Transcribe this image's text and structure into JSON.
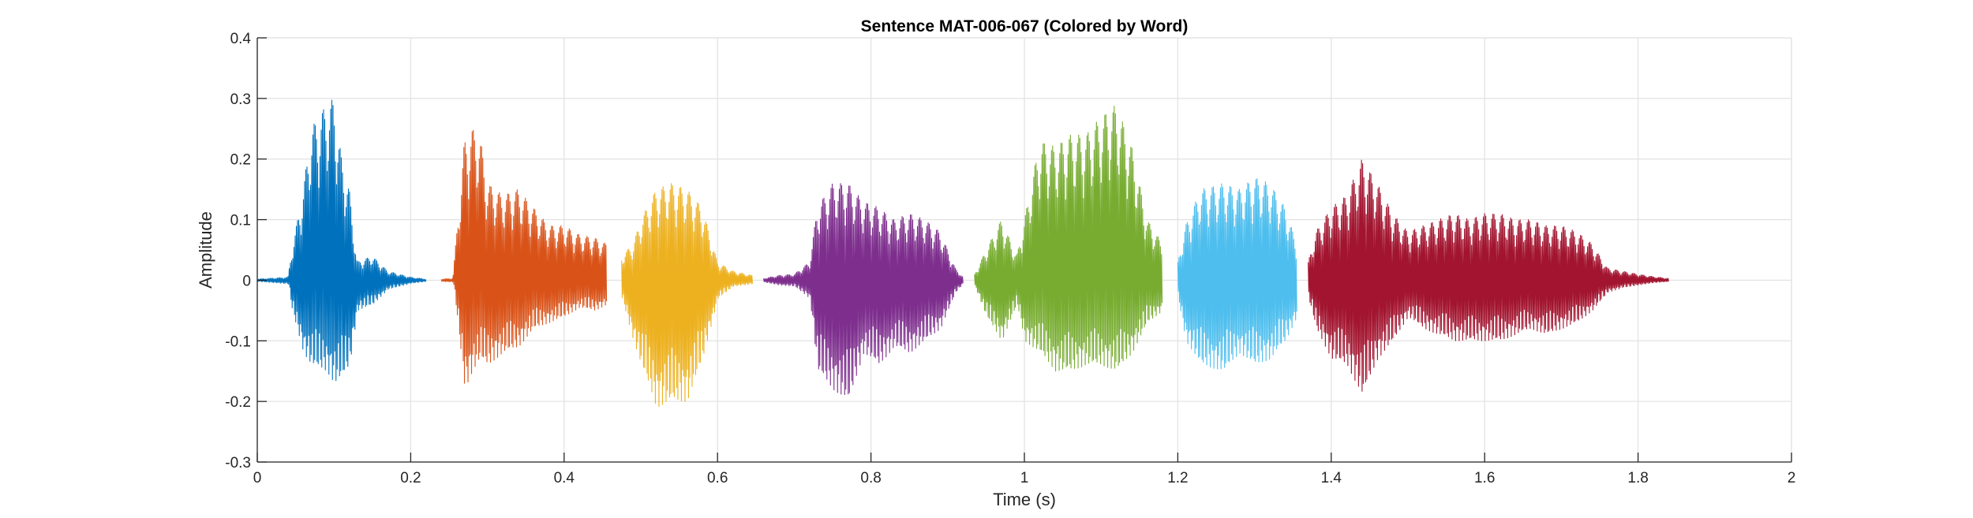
{
  "chart_data": {
    "type": "line",
    "title": "Sentence MAT-006-067 (Colored by Word)",
    "xlabel": "Time (s)",
    "ylabel": "Amplitude",
    "xlim": [
      0,
      2
    ],
    "ylim": [
      -0.3,
      0.4
    ],
    "xticks": [
      0,
      0.2,
      0.4,
      0.6,
      0.8,
      1,
      1.2,
      1.4,
      1.6,
      1.8,
      2
    ],
    "xtick_labels": [
      "0",
      "0.2",
      "0.4",
      "0.6",
      "0.8",
      "1",
      "1.2",
      "1.4",
      "1.6",
      "1.8",
      "2"
    ],
    "yticks": [
      -0.3,
      -0.2,
      -0.1,
      0,
      0.1,
      0.2,
      0.3,
      0.4
    ],
    "ytick_labels": [
      "-0.3",
      "-0.2",
      "-0.1",
      "0",
      "0.1",
      "0.2",
      "0.3",
      "0.4"
    ],
    "grid": true,
    "series": [
      {
        "color": "#0072BD",
        "t_start": 0.0,
        "t_end": 0.22,
        "envelope": [
          [
            0.0,
            0.002,
            -0.002
          ],
          [
            0.04,
            0.005,
            -0.006
          ],
          [
            0.045,
            0.05,
            -0.05
          ],
          [
            0.06,
            0.15,
            -0.12
          ],
          [
            0.07,
            0.25,
            -0.14
          ],
          [
            0.09,
            0.29,
            -0.15
          ],
          [
            0.1,
            0.3,
            -0.17
          ],
          [
            0.11,
            0.2,
            -0.16
          ],
          [
            0.12,
            0.15,
            -0.14
          ],
          [
            0.13,
            0.03,
            -0.05
          ],
          [
            0.15,
            0.04,
            -0.04
          ],
          [
            0.17,
            0.015,
            -0.015
          ],
          [
            0.2,
            0.005,
            -0.005
          ],
          [
            0.22,
            0.002,
            -0.002
          ]
        ]
      },
      {
        "color": "#D95319",
        "t_start": 0.24,
        "t_end": 0.455,
        "envelope": [
          [
            0.24,
            0.002,
            -0.002
          ],
          [
            0.255,
            0.003,
            -0.003
          ],
          [
            0.26,
            0.08,
            -0.06
          ],
          [
            0.27,
            0.23,
            -0.18
          ],
          [
            0.28,
            0.25,
            -0.15
          ],
          [
            0.29,
            0.24,
            -0.13
          ],
          [
            0.3,
            0.16,
            -0.14
          ],
          [
            0.32,
            0.14,
            -0.12
          ],
          [
            0.34,
            0.15,
            -0.11
          ],
          [
            0.36,
            0.12,
            -0.08
          ],
          [
            0.38,
            0.09,
            -0.07
          ],
          [
            0.4,
            0.09,
            -0.06
          ],
          [
            0.42,
            0.075,
            -0.045
          ],
          [
            0.44,
            0.07,
            -0.05
          ],
          [
            0.455,
            0.06,
            -0.04
          ]
        ]
      },
      {
        "color": "#EDB120",
        "t_start": 0.475,
        "t_end": 0.645,
        "envelope": [
          [
            0.475,
            0.04,
            -0.03
          ],
          [
            0.49,
            0.06,
            -0.1
          ],
          [
            0.5,
            0.1,
            -0.14
          ],
          [
            0.52,
            0.15,
            -0.21
          ],
          [
            0.54,
            0.16,
            -0.2
          ],
          [
            0.56,
            0.15,
            -0.2
          ],
          [
            0.58,
            0.12,
            -0.13
          ],
          [
            0.6,
            0.03,
            -0.03
          ],
          [
            0.62,
            0.015,
            -0.01
          ],
          [
            0.645,
            0.008,
            -0.006
          ]
        ]
      },
      {
        "color": "#7E2F8E",
        "t_start": 0.66,
        "t_end": 0.92,
        "envelope": [
          [
            0.66,
            0.003,
            -0.003
          ],
          [
            0.68,
            0.008,
            -0.008
          ],
          [
            0.7,
            0.01,
            -0.01
          ],
          [
            0.72,
            0.03,
            -0.03
          ],
          [
            0.73,
            0.12,
            -0.15
          ],
          [
            0.75,
            0.16,
            -0.18
          ],
          [
            0.77,
            0.16,
            -0.2
          ],
          [
            0.79,
            0.13,
            -0.12
          ],
          [
            0.81,
            0.12,
            -0.14
          ],
          [
            0.83,
            0.1,
            -0.11
          ],
          [
            0.85,
            0.11,
            -0.12
          ],
          [
            0.87,
            0.1,
            -0.1
          ],
          [
            0.89,
            0.08,
            -0.08
          ],
          [
            0.91,
            0.02,
            -0.02
          ],
          [
            0.92,
            0.005,
            -0.005
          ]
        ]
      },
      {
        "color": "#77AC30",
        "t_start": 0.935,
        "t_end": 1.18,
        "envelope": [
          [
            0.935,
            0.01,
            -0.01
          ],
          [
            0.95,
            0.05,
            -0.06
          ],
          [
            0.97,
            0.1,
            -0.1
          ],
          [
            0.99,
            0.04,
            -0.04
          ],
          [
            1.0,
            0.1,
            -0.1
          ],
          [
            1.02,
            0.23,
            -0.12
          ],
          [
            1.04,
            0.22,
            -0.15
          ],
          [
            1.06,
            0.24,
            -0.15
          ],
          [
            1.08,
            0.24,
            -0.14
          ],
          [
            1.1,
            0.27,
            -0.14
          ],
          [
            1.12,
            0.29,
            -0.15
          ],
          [
            1.14,
            0.22,
            -0.12
          ],
          [
            1.16,
            0.1,
            -0.07
          ],
          [
            1.18,
            0.06,
            -0.05
          ]
        ]
      },
      {
        "color": "#4DBEEE",
        "t_start": 1.2,
        "t_end": 1.355,
        "envelope": [
          [
            1.2,
            0.03,
            -0.03
          ],
          [
            1.21,
            0.09,
            -0.1
          ],
          [
            1.23,
            0.15,
            -0.14
          ],
          [
            1.26,
            0.16,
            -0.15
          ],
          [
            1.28,
            0.15,
            -0.12
          ],
          [
            1.3,
            0.17,
            -0.14
          ],
          [
            1.32,
            0.16,
            -0.13
          ],
          [
            1.34,
            0.12,
            -0.1
          ],
          [
            1.355,
            0.06,
            -0.06
          ]
        ]
      },
      {
        "color": "#A2142F",
        "t_start": 1.37,
        "t_end": 1.84,
        "envelope": [
          [
            1.37,
            0.03,
            -0.03
          ],
          [
            1.38,
            0.08,
            -0.08
          ],
          [
            1.4,
            0.12,
            -0.13
          ],
          [
            1.42,
            0.14,
            -0.14
          ],
          [
            1.44,
            0.2,
            -0.19
          ],
          [
            1.46,
            0.16,
            -0.13
          ],
          [
            1.48,
            0.11,
            -0.1
          ],
          [
            1.5,
            0.08,
            -0.06
          ],
          [
            1.52,
            0.09,
            -0.08
          ],
          [
            1.54,
            0.1,
            -0.09
          ],
          [
            1.56,
            0.11,
            -0.1
          ],
          [
            1.58,
            0.1,
            -0.1
          ],
          [
            1.6,
            0.11,
            -0.1
          ],
          [
            1.62,
            0.11,
            -0.1
          ],
          [
            1.64,
            0.1,
            -0.09
          ],
          [
            1.66,
            0.1,
            -0.08
          ],
          [
            1.68,
            0.09,
            -0.09
          ],
          [
            1.7,
            0.09,
            -0.08
          ],
          [
            1.72,
            0.08,
            -0.07
          ],
          [
            1.74,
            0.06,
            -0.05
          ],
          [
            1.76,
            0.02,
            -0.02
          ],
          [
            1.78,
            0.015,
            -0.012
          ],
          [
            1.8,
            0.01,
            -0.008
          ],
          [
            1.82,
            0.006,
            -0.004
          ],
          [
            1.84,
            0.003,
            -0.002
          ]
        ]
      }
    ]
  }
}
